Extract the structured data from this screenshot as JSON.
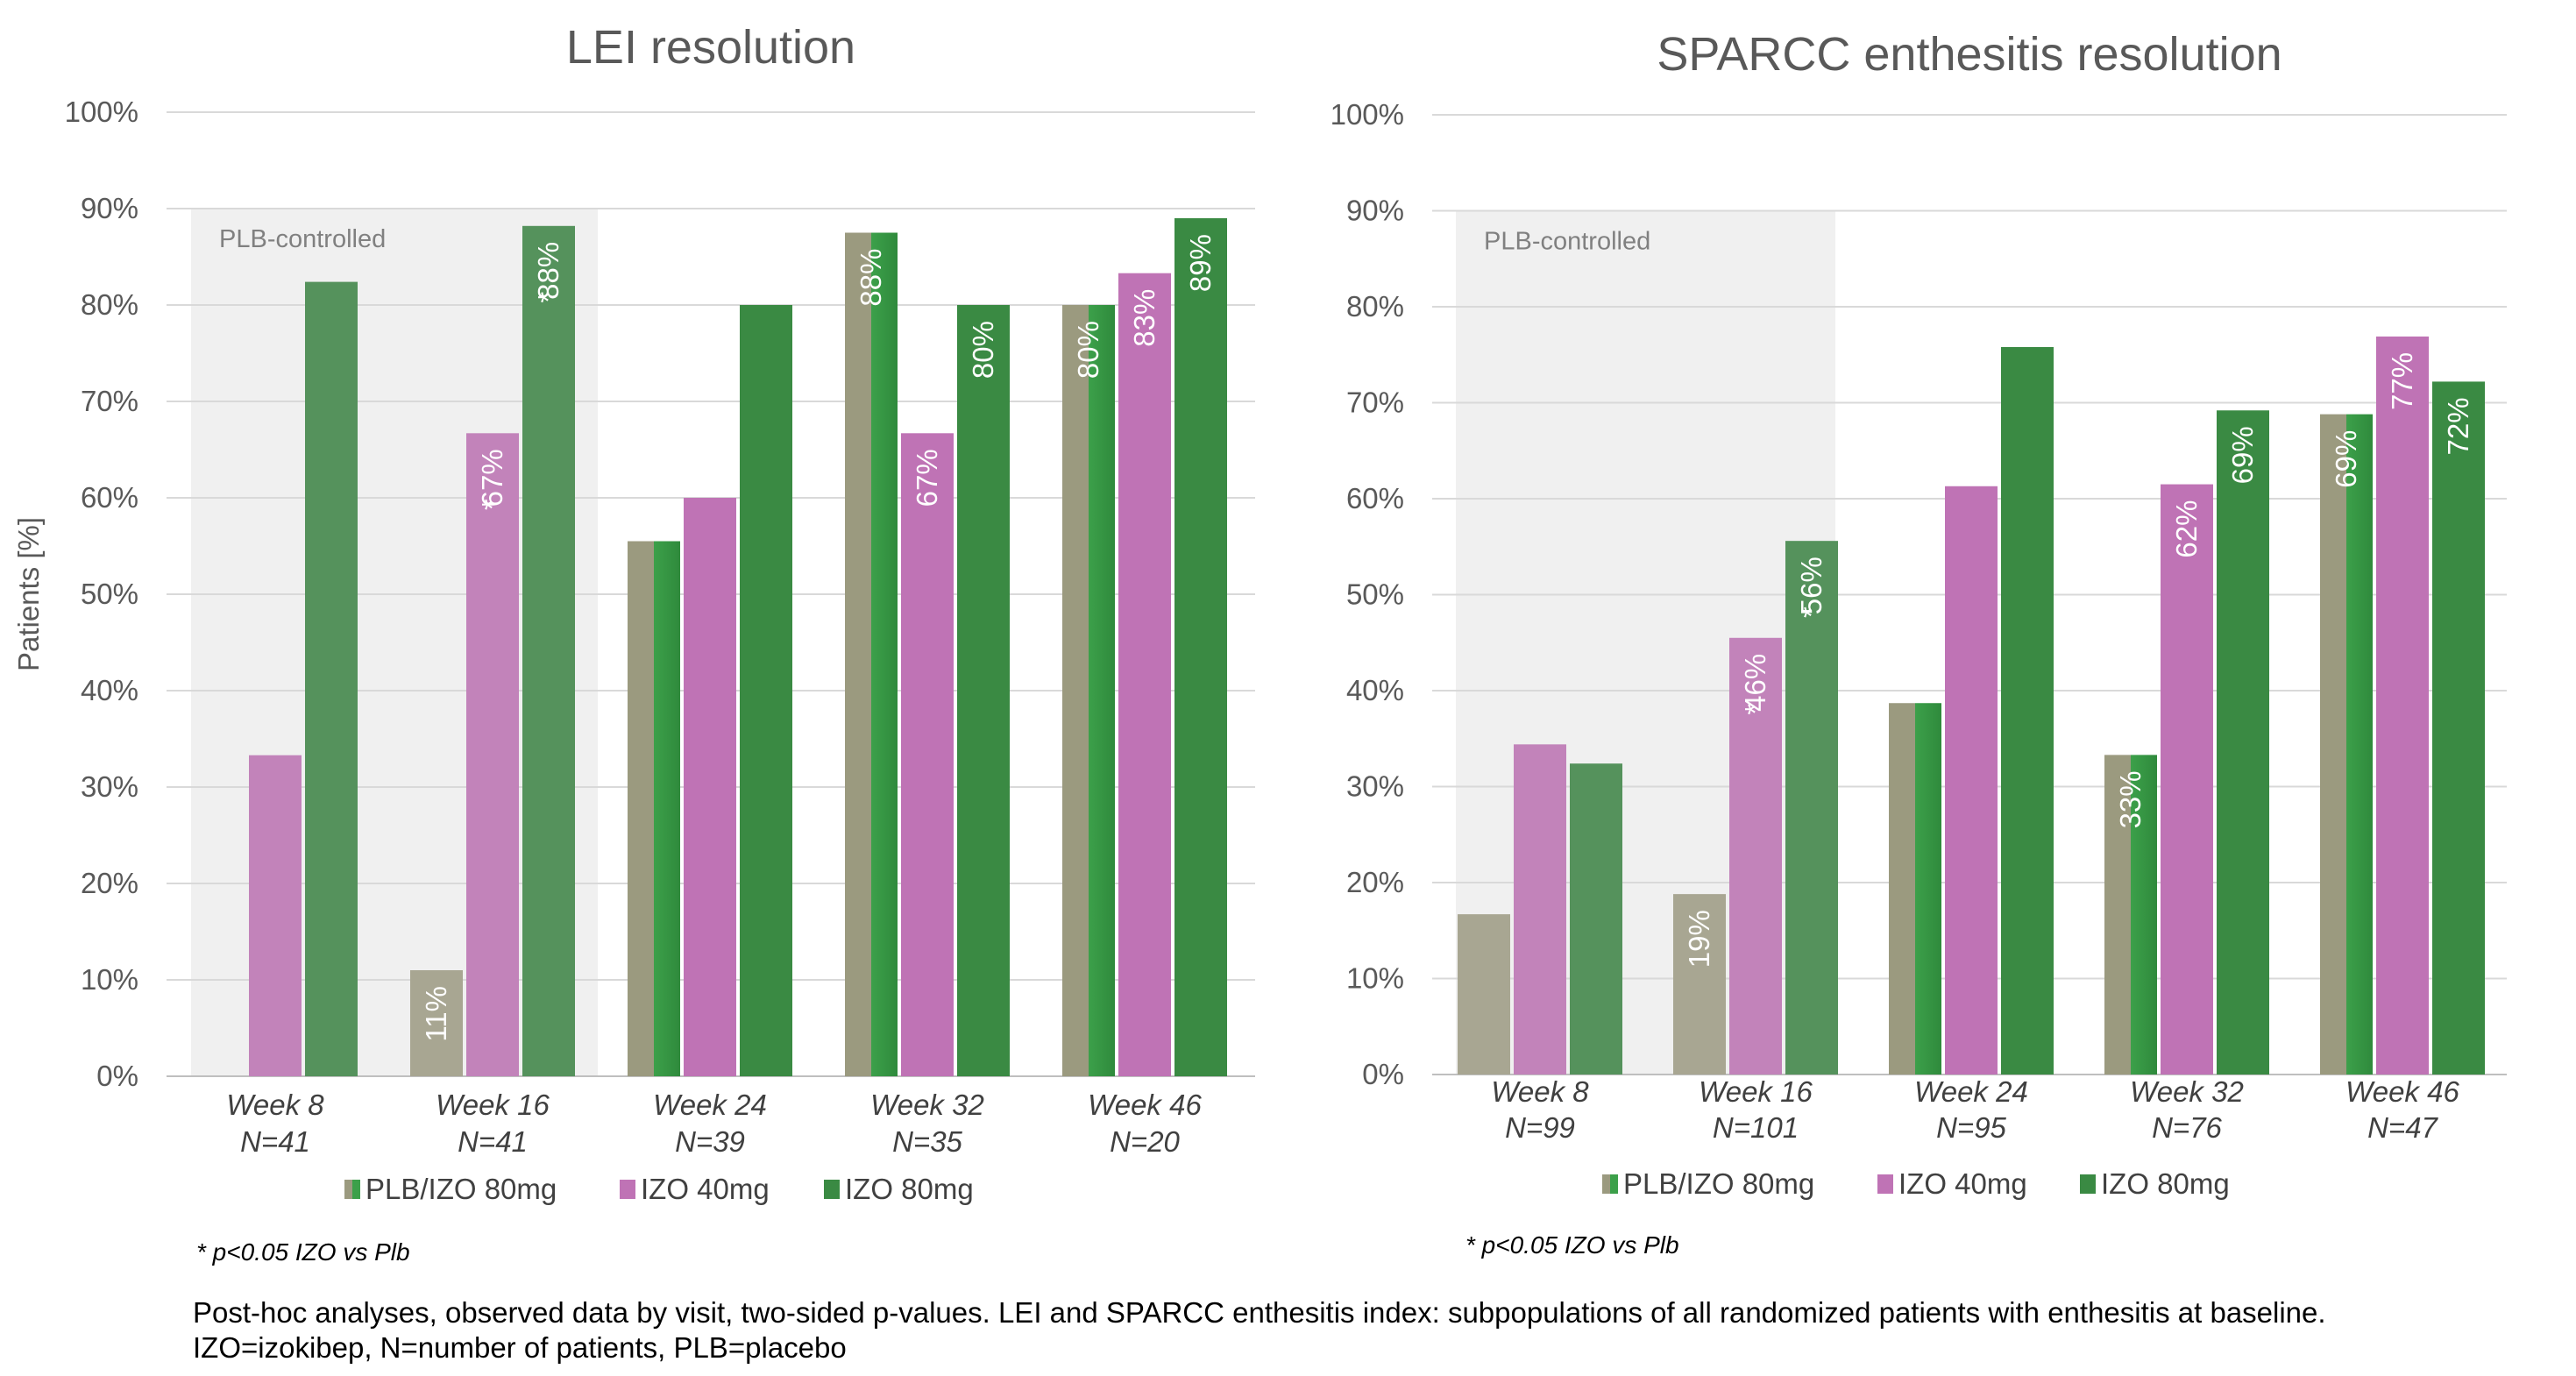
{
  "chart_data": [
    {
      "type": "bar",
      "title": "LEI resolution",
      "ylabel": "Patients [%]",
      "ylim": [
        0,
        100
      ],
      "y_ticks": [
        "0%",
        "10%",
        "20%",
        "30%",
        "40%",
        "50%",
        "60%",
        "70%",
        "80%",
        "90%",
        "100%"
      ],
      "grid": true,
      "categories": [
        "Week 8",
        "Week 16",
        "Week 24",
        "Week 32",
        "Week 46"
      ],
      "category_n": [
        "N=41",
        "N=41",
        "N=39",
        "N=35",
        "N=20"
      ],
      "shaded_region": {
        "label": "PLB-controlled",
        "categories": [
          "Week 8",
          "Week 16"
        ]
      },
      "legend_position": "bottom",
      "series": [
        {
          "name": "PLB/IZO 80mg",
          "values": [
            0,
            11,
            55.5,
            87.5,
            80
          ],
          "labels": [
            "",
            "11%",
            "",
            "88%",
            "80%"
          ],
          "color": "#9b9a7f",
          "switch_color": "#3ca04a"
        },
        {
          "name": "IZO 40mg",
          "values": [
            33.3,
            66.7,
            60,
            66.7,
            83.3
          ],
          "labels": [
            "",
            "67%",
            "",
            "67%",
            "83%"
          ],
          "color": "#bf73b5"
        },
        {
          "name": "IZO 80mg",
          "values": [
            82.4,
            88.2,
            80,
            80,
            89
          ],
          "labels": [
            "",
            "88%",
            "",
            "80%",
            "89%"
          ],
          "color": "#3a8a43"
        }
      ],
      "annotations": [
        {
          "category": "Week 16",
          "series": "IZO 40mg",
          "text": "*"
        },
        {
          "category": "Week 16",
          "series": "IZO 80mg",
          "text": "*"
        }
      ],
      "footnote": "* p<0.05 IZO vs Plb"
    },
    {
      "type": "bar",
      "title": "SPARCC enthesitis resolution",
      "ylabel": "",
      "ylim": [
        0,
        100
      ],
      "y_ticks": [
        "0%",
        "10%",
        "20%",
        "30%",
        "40%",
        "50%",
        "60%",
        "70%",
        "80%",
        "90%",
        "100%"
      ],
      "grid": true,
      "categories": [
        "Week 8",
        "Week 16",
        "Week 24",
        "Week 32",
        "Week 46"
      ],
      "category_n": [
        "N=99",
        "N=101",
        "N=95",
        "N=76",
        "N=47"
      ],
      "shaded_region": {
        "label": "PLB-controlled",
        "categories": [
          "Week 8",
          "Week 16"
        ]
      },
      "legend_position": "bottom",
      "series": [
        {
          "name": "PLB/IZO 80mg",
          "values": [
            16.7,
            18.8,
            38.7,
            33.3,
            68.8
          ],
          "labels": [
            "",
            "19%",
            "",
            "33%",
            "69%"
          ],
          "color": "#9b9a7f",
          "switch_color": "#3ca04a"
        },
        {
          "name": "IZO 40mg",
          "values": [
            34.4,
            45.5,
            61.3,
            61.5,
            76.9
          ],
          "labels": [
            "",
            "46%",
            "",
            "62%",
            "77%"
          ],
          "color": "#bf73b5"
        },
        {
          "name": "IZO 80mg",
          "values": [
            32.4,
            55.6,
            75.8,
            69.2,
            72.2
          ],
          "labels": [
            "",
            "56%",
            "",
            "69%",
            "72%"
          ],
          "color": "#3a8a43"
        }
      ],
      "annotations": [
        {
          "category": "Week 16",
          "series": "IZO 40mg",
          "text": "*"
        },
        {
          "category": "Week 16",
          "series": "IZO 80mg",
          "text": "*"
        }
      ],
      "footnote": "* p<0.05 IZO vs Plb"
    }
  ],
  "footnote_lines": [
    "Post-hoc analyses, observed data by visit, two-sided p-values. LEI and SPARCC enthesitis index: subpopulations of all randomized patients with enthesitis at baseline.",
    "IZO=izokibep, N=number of patients, PLB=placebo"
  ]
}
